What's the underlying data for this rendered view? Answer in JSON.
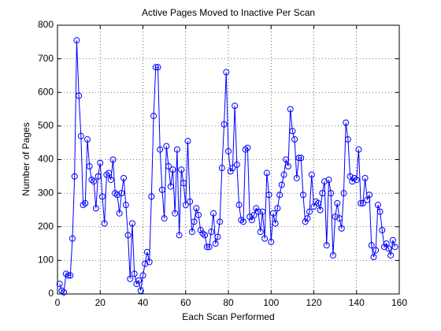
{
  "chart_data": {
    "type": "line",
    "title": "Active Pages Moved to Inactive Per Scan",
    "xlabel": "Each Scan Performed",
    "ylabel": "Number of Pages",
    "x": [
      1,
      2,
      3,
      4,
      5,
      6,
      7,
      8,
      9,
      10,
      11,
      12,
      13,
      14,
      15,
      16,
      17,
      18,
      19,
      20,
      21,
      22,
      23,
      24,
      25,
      26,
      27,
      28,
      29,
      30,
      31,
      32,
      33,
      34,
      35,
      36,
      37,
      38,
      39,
      40,
      41,
      42,
      43,
      44,
      45,
      46,
      47,
      48,
      49,
      50,
      51,
      52,
      53,
      54,
      55,
      56,
      57,
      58,
      59,
      60,
      61,
      62,
      63,
      64,
      65,
      66,
      67,
      68,
      69,
      70,
      71,
      72,
      73,
      74,
      75,
      76,
      77,
      78,
      79,
      80,
      81,
      82,
      83,
      84,
      85,
      86,
      87,
      88,
      89,
      90,
      91,
      92,
      93,
      94,
      95,
      96,
      97,
      98,
      99,
      100,
      101,
      102,
      103,
      104,
      105,
      106,
      107,
      108,
      109,
      110,
      111,
      112,
      113,
      114,
      115,
      116,
      117,
      118,
      119,
      120,
      121,
      122,
      123,
      124,
      125,
      126,
      127,
      128,
      129,
      130,
      131,
      132,
      133,
      134,
      135,
      136,
      137,
      138,
      139,
      140,
      141,
      142,
      143,
      144,
      145,
      146,
      147,
      148,
      149,
      150,
      151,
      152,
      153,
      154,
      155,
      156,
      157,
      158
    ],
    "series": [
      {
        "name": "pages",
        "color": "#0000ff",
        "values": [
          30,
          10,
          5,
          60,
          55,
          55,
          165,
          350,
          755,
          590,
          470,
          265,
          270,
          460,
          380,
          340,
          335,
          255,
          350,
          390,
          290,
          210,
          355,
          360,
          340,
          400,
          300,
          295,
          240,
          300,
          345,
          265,
          175,
          45,
          210,
          60,
          30,
          40,
          10,
          55,
          90,
          125,
          95,
          290,
          530,
          675,
          675,
          430,
          310,
          225,
          440,
          380,
          320,
          370,
          240,
          430,
          175,
          370,
          330,
          265,
          455,
          275,
          185,
          215,
          255,
          235,
          190,
          180,
          175,
          140,
          140,
          185,
          240,
          150,
          170,
          215,
          375,
          505,
          660,
          425,
          365,
          375,
          560,
          385,
          265,
          220,
          215,
          430,
          435,
          230,
          220,
          235,
          255,
          245,
          185,
          245,
          165,
          360,
          295,
          155,
          240,
          210,
          255,
          295,
          325,
          355,
          400,
          380,
          550,
          485,
          460,
          345,
          405,
          405,
          295,
          215,
          225,
          245,
          355,
          260,
          275,
          270,
          250,
          300,
          335,
          145,
          340,
          300,
          115,
          230,
          270,
          225,
          195,
          300,
          510,
          460,
          350,
          335,
          345,
          340,
          430,
          270,
          270,
          345,
          280,
          295,
          145,
          110,
          130,
          265,
          245,
          190,
          140,
          150,
          135,
          115,
          160,
          140
        ]
      }
    ],
    "xlim": [
      0,
      160
    ],
    "xticks": [
      0,
      20,
      40,
      60,
      80,
      100,
      120,
      140,
      160
    ],
    "ylim": [
      0,
      800
    ],
    "yticks": [
      0,
      100,
      200,
      300,
      400,
      500,
      600,
      700,
      800
    ],
    "grid": true,
    "marker": "circle"
  }
}
